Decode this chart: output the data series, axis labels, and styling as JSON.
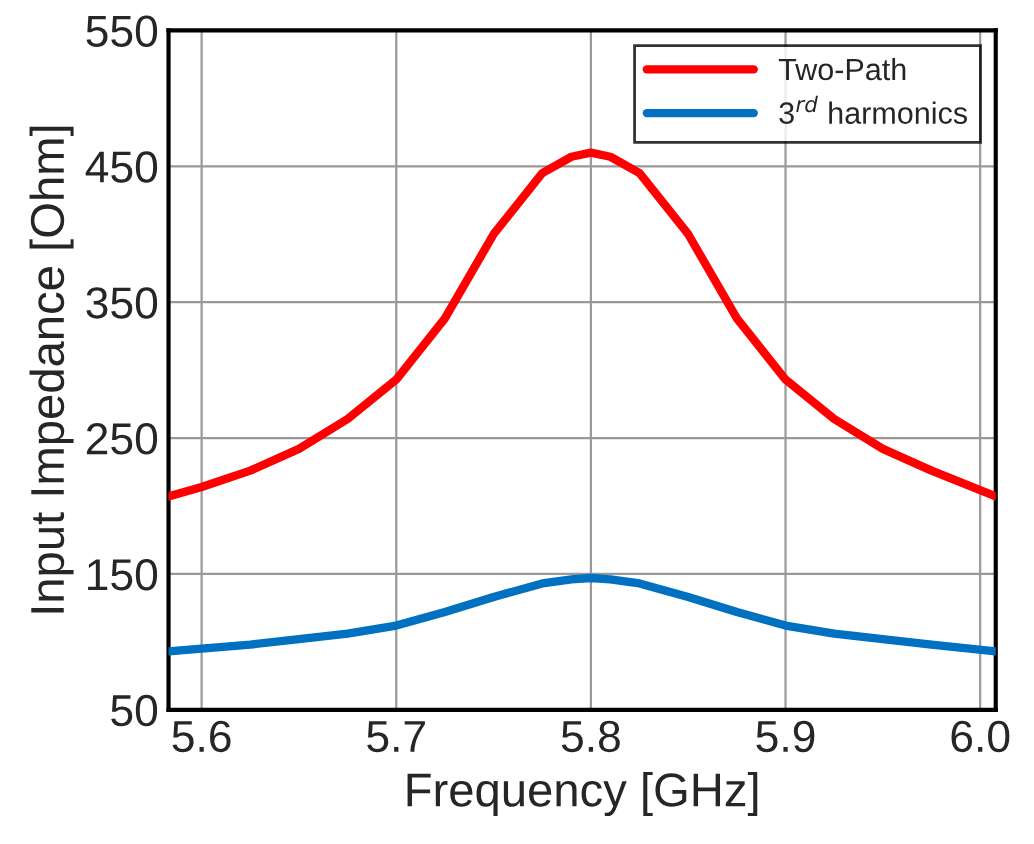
{
  "chart_data": {
    "type": "line",
    "xlabel": "Frequency [GHz]",
    "ylabel": "Input Impedance [Ohm]",
    "x": [
      5.583,
      5.6,
      5.625,
      5.65,
      5.675,
      5.7,
      5.725,
      5.75,
      5.775,
      5.79,
      5.8,
      5.81,
      5.825,
      5.85,
      5.875,
      5.9,
      5.925,
      5.95,
      5.975,
      6.008
    ],
    "series": [
      {
        "name": "Two-Path",
        "color": "#ff0000",
        "values": [
          207,
          214,
          226,
          242,
          264,
          293,
          338,
          400,
          445,
          457,
          460,
          457,
          445,
          400,
          338,
          293,
          264,
          242,
          226,
          207
        ]
      },
      {
        "name": "3$^{rd}$ harmonics",
        "color": "#0070c0",
        "values": [
          93,
          95,
          98,
          102,
          106,
          112,
          122,
          133,
          143,
          146,
          147,
          146,
          143,
          133,
          122,
          112,
          106,
          102,
          98,
          93
        ]
      }
    ],
    "xlim": [
      5.583,
      6.008
    ],
    "xticks": [
      5.6,
      5.7,
      5.8,
      5.9,
      {
        "value": 6.0,
        "label": "6.0"
      }
    ],
    "ylim": [
      50,
      550
    ],
    "yticks": [
      50,
      150,
      250,
      350,
      450,
      550
    ],
    "grid": true,
    "legend": "top right"
  }
}
